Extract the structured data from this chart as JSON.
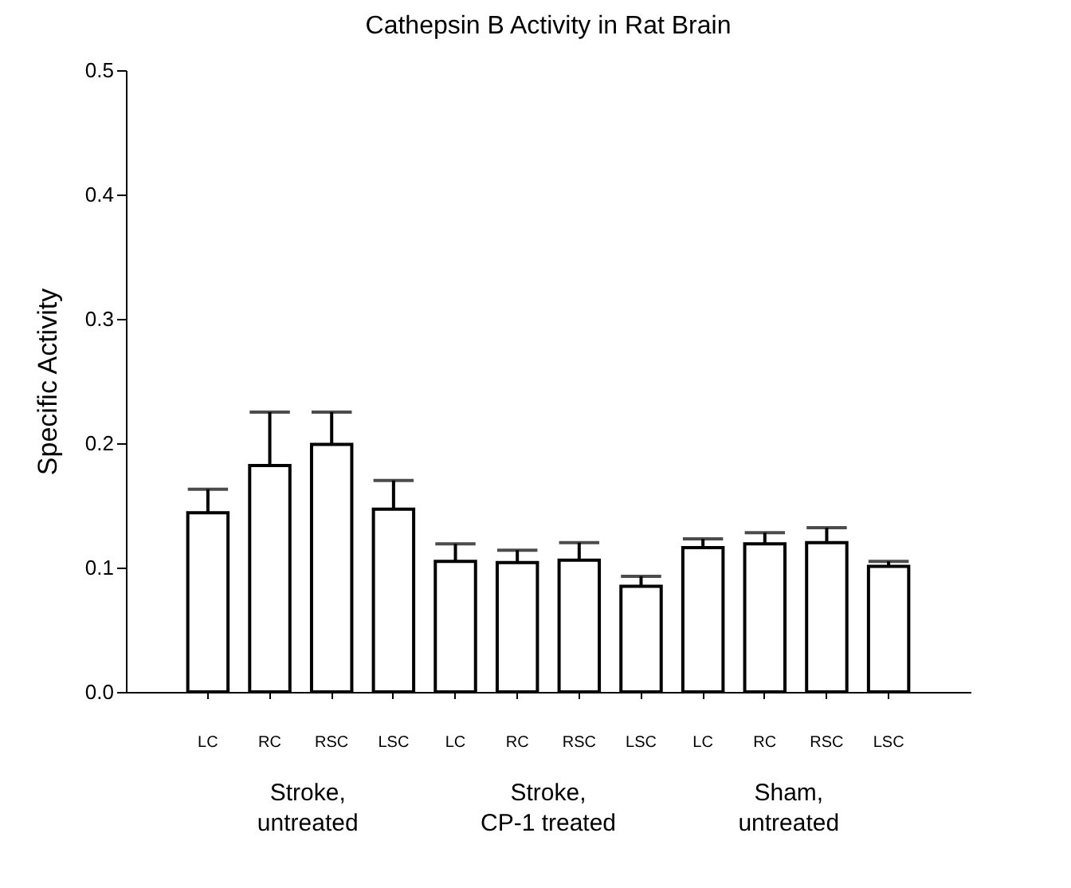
{
  "chart_data": {
    "type": "bar",
    "title": "Cathepsin B Activity in Rat Brain",
    "ylabel": "Specific Activity",
    "categories": [
      "LC",
      "RC",
      "RSC",
      "LSC",
      "LC",
      "RC",
      "RSC",
      "LSC",
      "LC",
      "RC",
      "RSC",
      "LSC"
    ],
    "values": [
      0.144,
      0.182,
      0.199,
      0.147,
      0.105,
      0.104,
      0.106,
      0.085,
      0.116,
      0.119,
      0.12,
      0.101
    ],
    "errors": [
      [
        0.144,
        0.163
      ],
      [
        0.182,
        0.225
      ],
      [
        0.199,
        0.225
      ],
      [
        0.147,
        0.17
      ],
      [
        0.105,
        0.119
      ],
      [
        0.104,
        0.114
      ],
      [
        0.106,
        0.12
      ],
      [
        0.085,
        0.093
      ],
      [
        0.116,
        0.123
      ],
      [
        0.119,
        0.128
      ],
      [
        0.12,
        0.132
      ],
      [
        0.101,
        0.105
      ]
    ],
    "colors": [
      "#ffffff",
      "#ffffff",
      "#ffffff",
      "#ffffff",
      "#ffffff",
      "#ffffff",
      "#ffffff",
      "#ffffff",
      "#ffffff",
      "#ffffff",
      "#ffffff",
      "#ffffff"
    ],
    "ylim": [
      0,
      0.5
    ],
    "yticks": [
      {
        "value": 0,
        "label": "0.0"
      },
      {
        "value": 0.1,
        "label": "0.1"
      },
      {
        "value": 0.2,
        "label": "0.2"
      },
      {
        "value": 0.3,
        "label": "0.3"
      },
      {
        "value": 0.4,
        "label": "0.4"
      },
      {
        "value": 0.5,
        "label": "0.5"
      }
    ],
    "annotations": [
      "Stroke, untreated",
      "Stroke, CP-1 treated",
      "Sham, untreated"
    ]
  }
}
